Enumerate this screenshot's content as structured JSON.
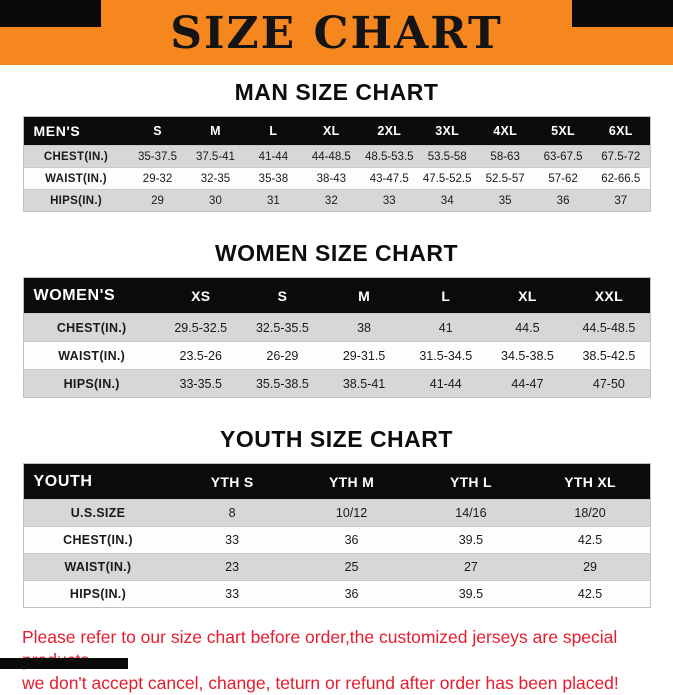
{
  "banner": {
    "title": "SIZE CHART",
    "bg_color": "#F5871E"
  },
  "sections": [
    {
      "heading": "MAN SIZE CHART",
      "header": [
        "MEN'S",
        "S",
        "M",
        "L",
        "XL",
        "2XL",
        "3XL",
        "4XL",
        "5XL",
        "6XL"
      ],
      "rows": [
        [
          "CHEST(IN.)",
          "35-37.5",
          "37.5-41",
          "41-44",
          "44-48.5",
          "48.5-53.5",
          "53.5-58",
          "58-63",
          "63-67.5",
          "67.5-72"
        ],
        [
          "WAIST(IN.)",
          "29-32",
          "32-35",
          "35-38",
          "38-43",
          "43-47.5",
          "47.5-52.5",
          "52.5-57",
          "57-62",
          "62-66.5"
        ],
        [
          "HIPS(IN.)",
          "29",
          "30",
          "31",
          "32",
          "33",
          "34",
          "35",
          "36",
          "37"
        ]
      ]
    },
    {
      "heading": "WOMEN SIZE CHART",
      "header": [
        "WOMEN'S",
        "XS",
        "S",
        "M",
        "L",
        "XL",
        "XXL"
      ],
      "rows": [
        [
          "CHEST(IN.)",
          "29.5-32.5",
          "32.5-35.5",
          "38",
          "41",
          "44.5",
          "44.5-48.5"
        ],
        [
          "WAIST(IN.)",
          "23.5-26",
          "26-29",
          "29-31.5",
          "31.5-34.5",
          "34.5-38.5",
          "38.5-42.5"
        ],
        [
          "HIPS(IN.)",
          "33-35.5",
          "35.5-38.5",
          "38.5-41",
          "41-44",
          "44-47",
          "47-50"
        ]
      ]
    },
    {
      "heading": "YOUTH SIZE CHART",
      "header": [
        "YOUTH",
        "YTH S",
        "YTH M",
        "YTH L",
        "YTH XL"
      ],
      "rows": [
        [
          "U.S.SIZE",
          "8",
          "10/12",
          "14/16",
          "18/20"
        ],
        [
          "CHEST(IN.)",
          "33",
          "36",
          "39.5",
          "42.5"
        ],
        [
          "WAIST(IN.)",
          "23",
          "25",
          "27",
          "29"
        ],
        [
          "HIPS(IN.)",
          "33",
          "36",
          "39.5",
          "42.5"
        ]
      ]
    }
  ],
  "footer": {
    "line1": "Please refer to our size chart before order,the customized jerseys are special products,",
    "line2": "we don't accept cancel, change, teturn or refund after order has been placed!",
    "color": "#E61C2E"
  }
}
